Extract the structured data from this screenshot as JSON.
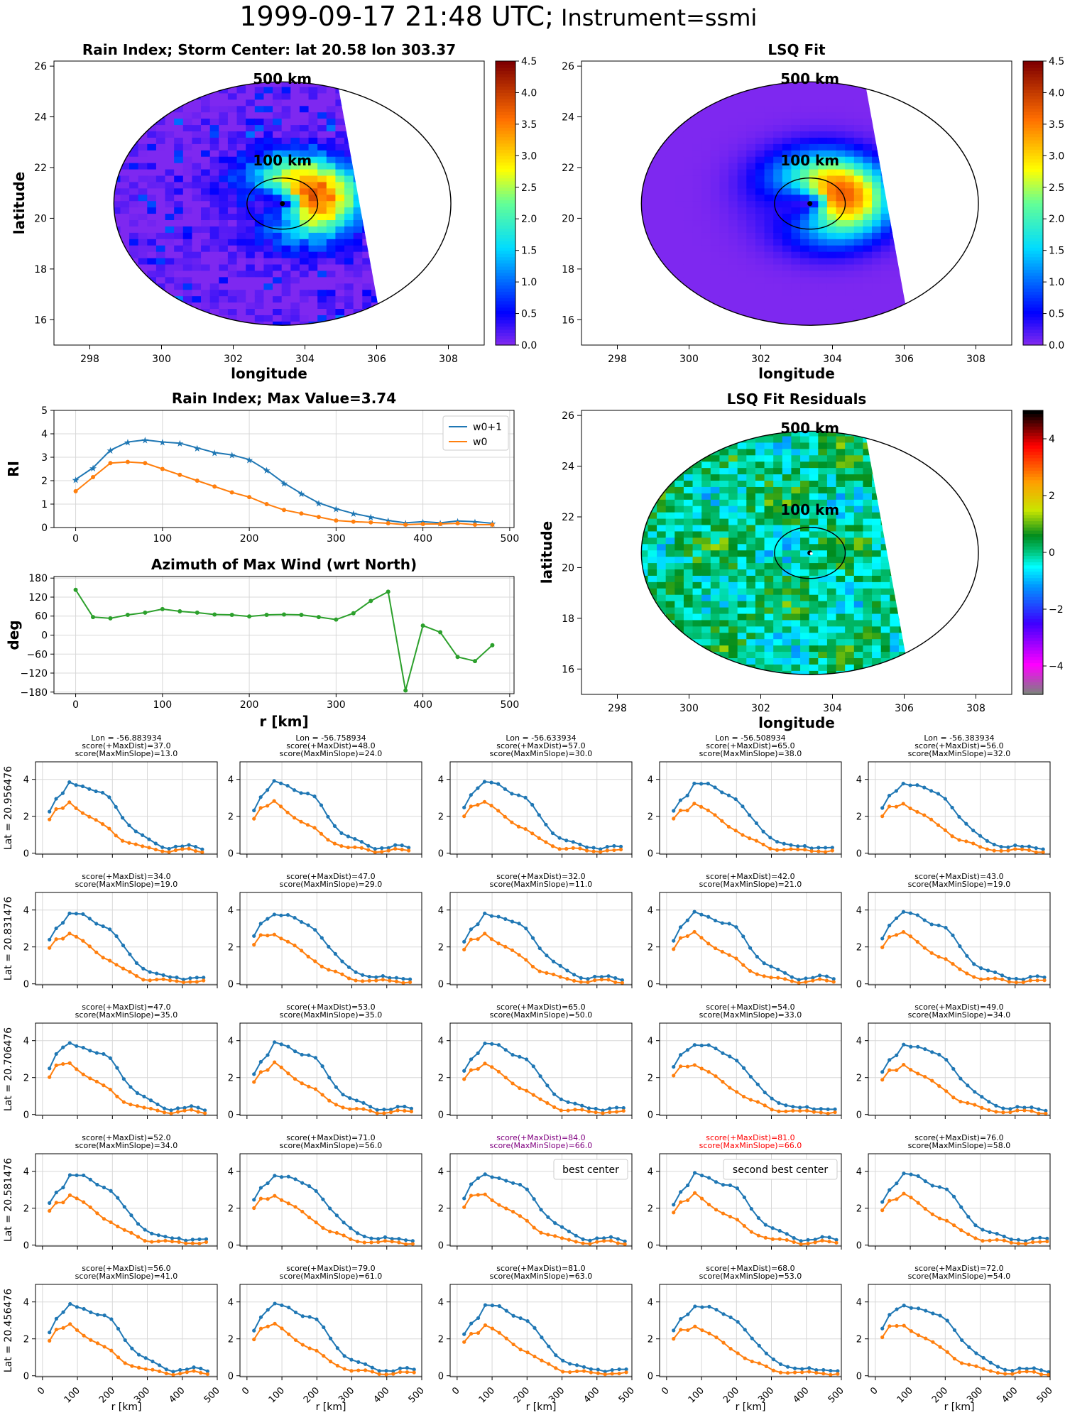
{
  "figure": {
    "title_date": "1999-09-17 21:48 UTC;",
    "title_instrument": "Instrument=ssmi"
  },
  "maps": {
    "rain_index_title": "Rain Index; Storm Center: lat 20.58 lon 303.37",
    "lsq_fit_title": "LSQ Fit",
    "residuals_title": "LSQ Fit Residuals",
    "xlabel": "longitude",
    "ylabel": "latitude",
    "ring_500_label": "500 km",
    "ring_100_label": "100 km",
    "x_ticks": [
      "298",
      "300",
      "302",
      "304",
      "306",
      "308"
    ],
    "y_ticks": [
      "16",
      "18",
      "20",
      "22",
      "24",
      "26"
    ],
    "colorbar_ticks": [
      "0.0",
      "0.5",
      "1.0",
      "1.5",
      "2.0",
      "2.5",
      "3.0",
      "3.5",
      "4.0",
      "4.5"
    ],
    "residual_colorbar_ticks": [
      "4",
      "2",
      "0",
      "−2",
      "−4"
    ],
    "storm_center": {
      "lat": 20.58,
      "lon": 303.37
    },
    "xlim": [
      297,
      309
    ],
    "ylim": [
      15,
      26.2
    ]
  },
  "chart_data": [
    {
      "type": "line",
      "title": "Rain Index; Max Value=3.74",
      "ylabel": "RI",
      "xlabel": "",
      "xlim": [
        -25,
        505
      ],
      "ylim": [
        0,
        5
      ],
      "x_ticks": [
        "0",
        "100",
        "200",
        "300",
        "400",
        "500"
      ],
      "y_ticks": [
        "0",
        "1",
        "2",
        "3",
        "4",
        "5"
      ],
      "legend": "top-right",
      "x": [
        0,
        20,
        40,
        60,
        80,
        100,
        120,
        140,
        160,
        180,
        200,
        220,
        240,
        260,
        280,
        300,
        320,
        340,
        360,
        380,
        400,
        420,
        440,
        460,
        480
      ],
      "series": [
        {
          "name": "w0+1",
          "color": "#1f77b4",
          "marker": "star",
          "values": [
            2.05,
            2.55,
            3.3,
            3.65,
            3.74,
            3.65,
            3.6,
            3.4,
            3.2,
            3.1,
            2.9,
            2.45,
            1.9,
            1.45,
            1.05,
            0.8,
            0.6,
            0.45,
            0.3,
            0.2,
            0.25,
            0.2,
            0.28,
            0.25,
            0.18
          ]
        },
        {
          "name": "w0",
          "color": "#ff7f0e",
          "marker": "dot",
          "values": [
            1.55,
            2.15,
            2.75,
            2.8,
            2.75,
            2.5,
            2.25,
            2.0,
            1.75,
            1.5,
            1.3,
            1.0,
            0.75,
            0.6,
            0.45,
            0.3,
            0.25,
            0.22,
            0.18,
            0.12,
            0.15,
            0.15,
            0.18,
            0.12,
            0.12
          ]
        }
      ]
    },
    {
      "type": "line",
      "title": "Azimuth of Max Wind (wrt North)",
      "ylabel": "deg",
      "xlabel": "r [km]",
      "xlim": [
        -25,
        505
      ],
      "ylim": [
        -185,
        185
      ],
      "x_ticks": [
        "0",
        "100",
        "200",
        "300",
        "400",
        "500"
      ],
      "y_ticks": [
        "180",
        "120",
        "60",
        "0",
        "−60",
        "−120",
        "−180"
      ],
      "x": [
        0,
        20,
        40,
        60,
        80,
        100,
        120,
        140,
        160,
        180,
        200,
        220,
        240,
        260,
        280,
        300,
        320,
        340,
        360,
        380,
        400,
        420,
        440,
        460,
        480
      ],
      "series": [
        {
          "name": "",
          "color": "#2ca02c",
          "values": [
            143,
            57,
            53,
            64,
            71,
            82,
            75,
            71,
            65,
            64,
            59,
            64,
            65,
            64,
            57,
            49,
            69,
            108,
            137,
            -175,
            30,
            9,
            -69,
            -82,
            -32
          ]
        }
      ]
    }
  ],
  "grid": {
    "xlabel": "r [km]",
    "x_ticks": [
      "0",
      "100",
      "200",
      "300",
      "400",
      "500"
    ],
    "y_ticks": [
      "0",
      "2",
      "4"
    ],
    "lons": [
      "Lon = -56.883934",
      "Lon = -56.758934",
      "Lon = -56.633934",
      "Lon = -56.508934",
      "Lon = -56.383934"
    ],
    "lat_labels": [
      "Lat = 20.956476",
      "Lat = 20.831476",
      "Lat = 20.706476",
      "Lat = 20.581476",
      "Lat = 20.456476"
    ],
    "scores": [
      [
        [
          "score(+MaxDist)=37.0",
          "score(MaxMinSlope)=13.0"
        ],
        [
          "score(+MaxDist)=48.0",
          "score(MaxMinSlope)=24.0"
        ],
        [
          "score(+MaxDist)=57.0",
          "score(MaxMinSlope)=30.0"
        ],
        [
          "score(+MaxDist)=65.0",
          "score(MaxMinSlope)=38.0"
        ],
        [
          "score(+MaxDist)=56.0",
          "score(MaxMinSlope)=32.0"
        ]
      ],
      [
        [
          "score(+MaxDist)=34.0",
          "score(MaxMinSlope)=19.0"
        ],
        [
          "score(+MaxDist)=47.0",
          "score(MaxMinSlope)=29.0"
        ],
        [
          "score(+MaxDist)=32.0",
          "score(MaxMinSlope)=11.0"
        ],
        [
          "score(+MaxDist)=42.0",
          "score(MaxMinSlope)=21.0"
        ],
        [
          "score(+MaxDist)=43.0",
          "score(MaxMinSlope)=19.0"
        ]
      ],
      [
        [
          "score(+MaxDist)=47.0",
          "score(MaxMinSlope)=35.0"
        ],
        [
          "score(+MaxDist)=53.0",
          "score(MaxMinSlope)=35.0"
        ],
        [
          "score(+MaxDist)=65.0",
          "score(MaxMinSlope)=50.0"
        ],
        [
          "score(+MaxDist)=54.0",
          "score(MaxMinSlope)=33.0"
        ],
        [
          "score(+MaxDist)=49.0",
          "score(MaxMinSlope)=34.0"
        ]
      ],
      [
        [
          "score(+MaxDist)=52.0",
          "score(MaxMinSlope)=34.0"
        ],
        [
          "score(+MaxDist)=71.0",
          "score(MaxMinSlope)=56.0"
        ],
        [
          "score(+MaxDist)=84.0",
          "score(MaxMinSlope)=66.0"
        ],
        [
          "score(+MaxDist)=81.0",
          "score(MaxMinSlope)=66.0"
        ],
        [
          "score(+MaxDist)=76.0",
          "score(MaxMinSlope)=58.0"
        ]
      ],
      [
        [
          "score(+MaxDist)=56.0",
          "score(MaxMinSlope)=41.0"
        ],
        [
          "score(+MaxDist)=79.0",
          "score(MaxMinSlope)=61.0"
        ],
        [
          "score(+MaxDist)=81.0",
          "score(MaxMinSlope)=63.0"
        ],
        [
          "score(+MaxDist)=68.0",
          "score(MaxMinSlope)=53.0"
        ],
        [
          "score(+MaxDist)=72.0",
          "score(MaxMinSlope)=54.0"
        ]
      ]
    ],
    "highlight": [
      {
        "row": 3,
        "col": 2,
        "color": "#800080",
        "legend": "best center"
      },
      {
        "row": 3,
        "col": 3,
        "color": "#ff0000",
        "legend": "second best center"
      }
    ],
    "series_colors": {
      "w0+1": "#1f77b4",
      "w0": "#ff7f0e"
    }
  }
}
